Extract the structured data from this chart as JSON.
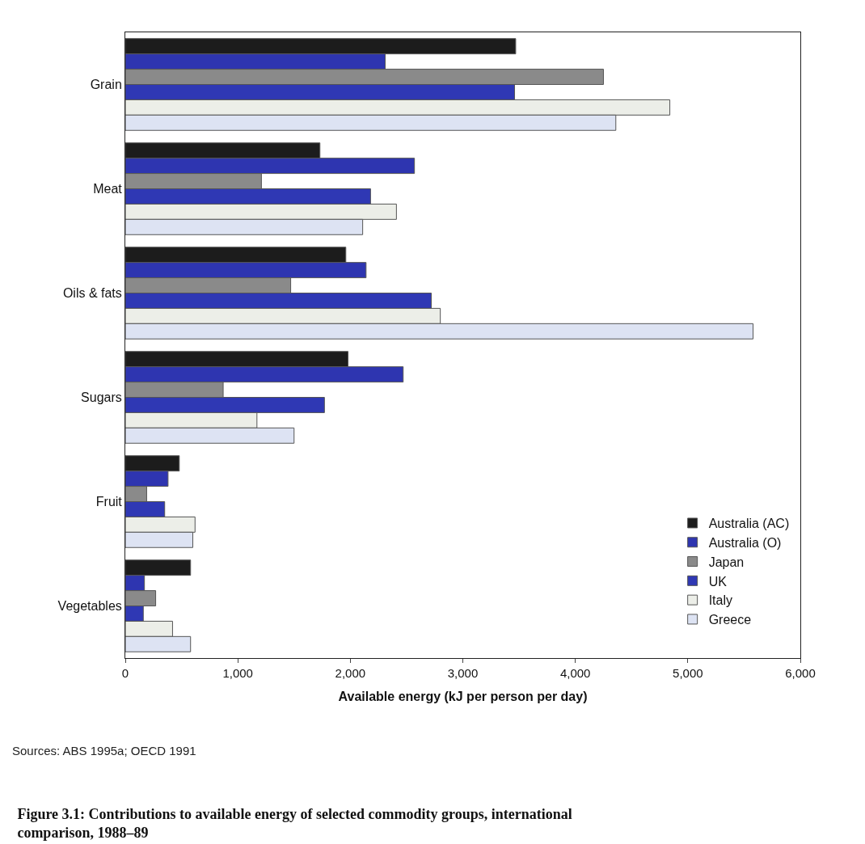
{
  "chart_data": {
    "type": "bar",
    "orientation": "horizontal",
    "title": "Figure 3.1: Contributions to available energy of selected commodity groups, international comparison, 1988–89",
    "xlabel": "Available energy (kJ per person per day)",
    "annotations": [
      "Sources: ABS 1995a; OECD 1991"
    ],
    "categories": [
      "Grain",
      "Meat",
      "Oils & fats",
      "Sugars",
      "Fruit",
      "Vegetables"
    ],
    "series": [
      {
        "name": "Australia (AC)",
        "color": "#1c1c1c",
        "values": [
          3470,
          1730,
          1960,
          1980,
          480,
          580
        ]
      },
      {
        "name": "Australia (O)",
        "color": "#2e35b0",
        "values": [
          2310,
          2570,
          2140,
          2470,
          380,
          170
        ]
      },
      {
        "name": "Japan",
        "color": "#8a8a8a",
        "values": [
          4250,
          1210,
          1470,
          870,
          190,
          270
        ]
      },
      {
        "name": "UK",
        "color": "#2f38b4",
        "values": [
          3460,
          2180,
          2720,
          1770,
          350,
          160
        ]
      },
      {
        "name": "Italy",
        "color": "#eceee8",
        "values": [
          4840,
          2410,
          2800,
          1170,
          620,
          420
        ]
      },
      {
        "name": "Greece",
        "color": "#dde3f3",
        "values": [
          4360,
          2110,
          5580,
          1500,
          600,
          580
        ]
      }
    ],
    "xlim": [
      0,
      6000
    ],
    "xticks": [
      {
        "value": 0,
        "label": "0"
      },
      {
        "value": 1000,
        "label": "1,000"
      },
      {
        "value": 2000,
        "label": "2,000"
      },
      {
        "value": 3000,
        "label": "3,000"
      },
      {
        "value": 4000,
        "label": "4,000"
      },
      {
        "value": 5000,
        "label": "5,000"
      },
      {
        "value": 6000,
        "label": "6,000"
      }
    ],
    "legend": "bottom right"
  }
}
